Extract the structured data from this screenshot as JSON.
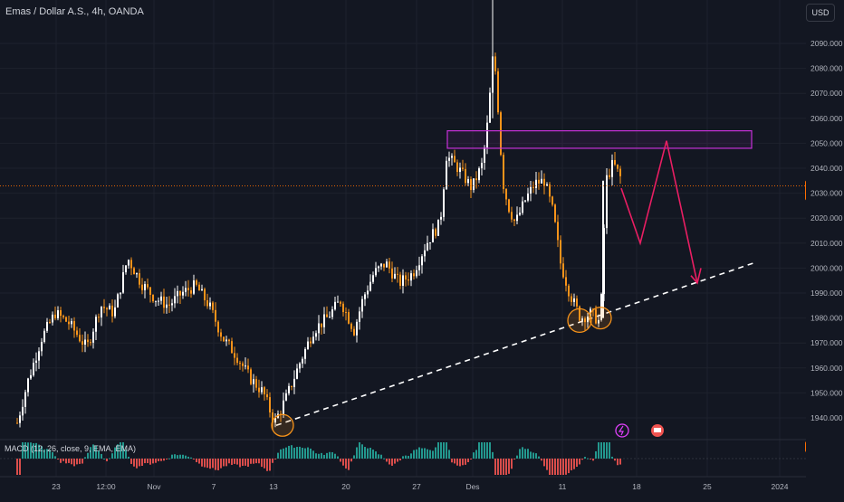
{
  "header": {
    "title": "Emas / Dollar A.S., 4h, OANDA",
    "currency": "USD"
  },
  "price_tag": {
    "value": "2032.920",
    "countdown": "25:14"
  },
  "macd": {
    "label": "MACD (12, 26, close, 9, EMA, EMA)",
    "value": "2.280",
    "zero": "0.000"
  },
  "colors": {
    "background": "#131722",
    "bull": "#ffffff",
    "bear": "#f7931a",
    "zone": "#c530d8",
    "projection": "#e91e63",
    "trendline": "#ffffff",
    "hist_pos": "#26a69a",
    "hist_neg": "#ef5350",
    "accent": "#ff6d00"
  },
  "icons": [
    "lightning-icon",
    "flag-icon"
  ],
  "chart_data": {
    "type": "candlestick",
    "title": "Emas / Dollar A.S., 4h, OANDA",
    "ylim": [
      1930,
      2100
    ],
    "y_ticks": [
      1940,
      1950,
      1960,
      1970,
      1980,
      1990,
      2000,
      2010,
      2020,
      2030,
      2040,
      2050,
      2060,
      2070,
      2080,
      2090
    ],
    "x_ticks": [
      "23",
      "12:00",
      "Nov",
      "7",
      "13",
      "20",
      "27",
      "Des",
      "11",
      "18",
      "25",
      "2024"
    ],
    "last_price": 2032.92,
    "resistance_zone": [
      2048,
      2055
    ],
    "trendline": [
      {
        "x": "13",
        "y": 1935
      },
      {
        "x": "2024",
        "y": 2002
      }
    ],
    "projection_path": [
      2032,
      2010,
      2051,
      1994
    ],
    "swing_points": [
      {
        "label": "Des",
        "y": 2098
      },
      {
        "label": "13",
        "y": 1937
      }
    ],
    "macd_series": {
      "name": "MACD (12, 26, close, 9, EMA, EMA)",
      "last_value": 2.28
    }
  }
}
